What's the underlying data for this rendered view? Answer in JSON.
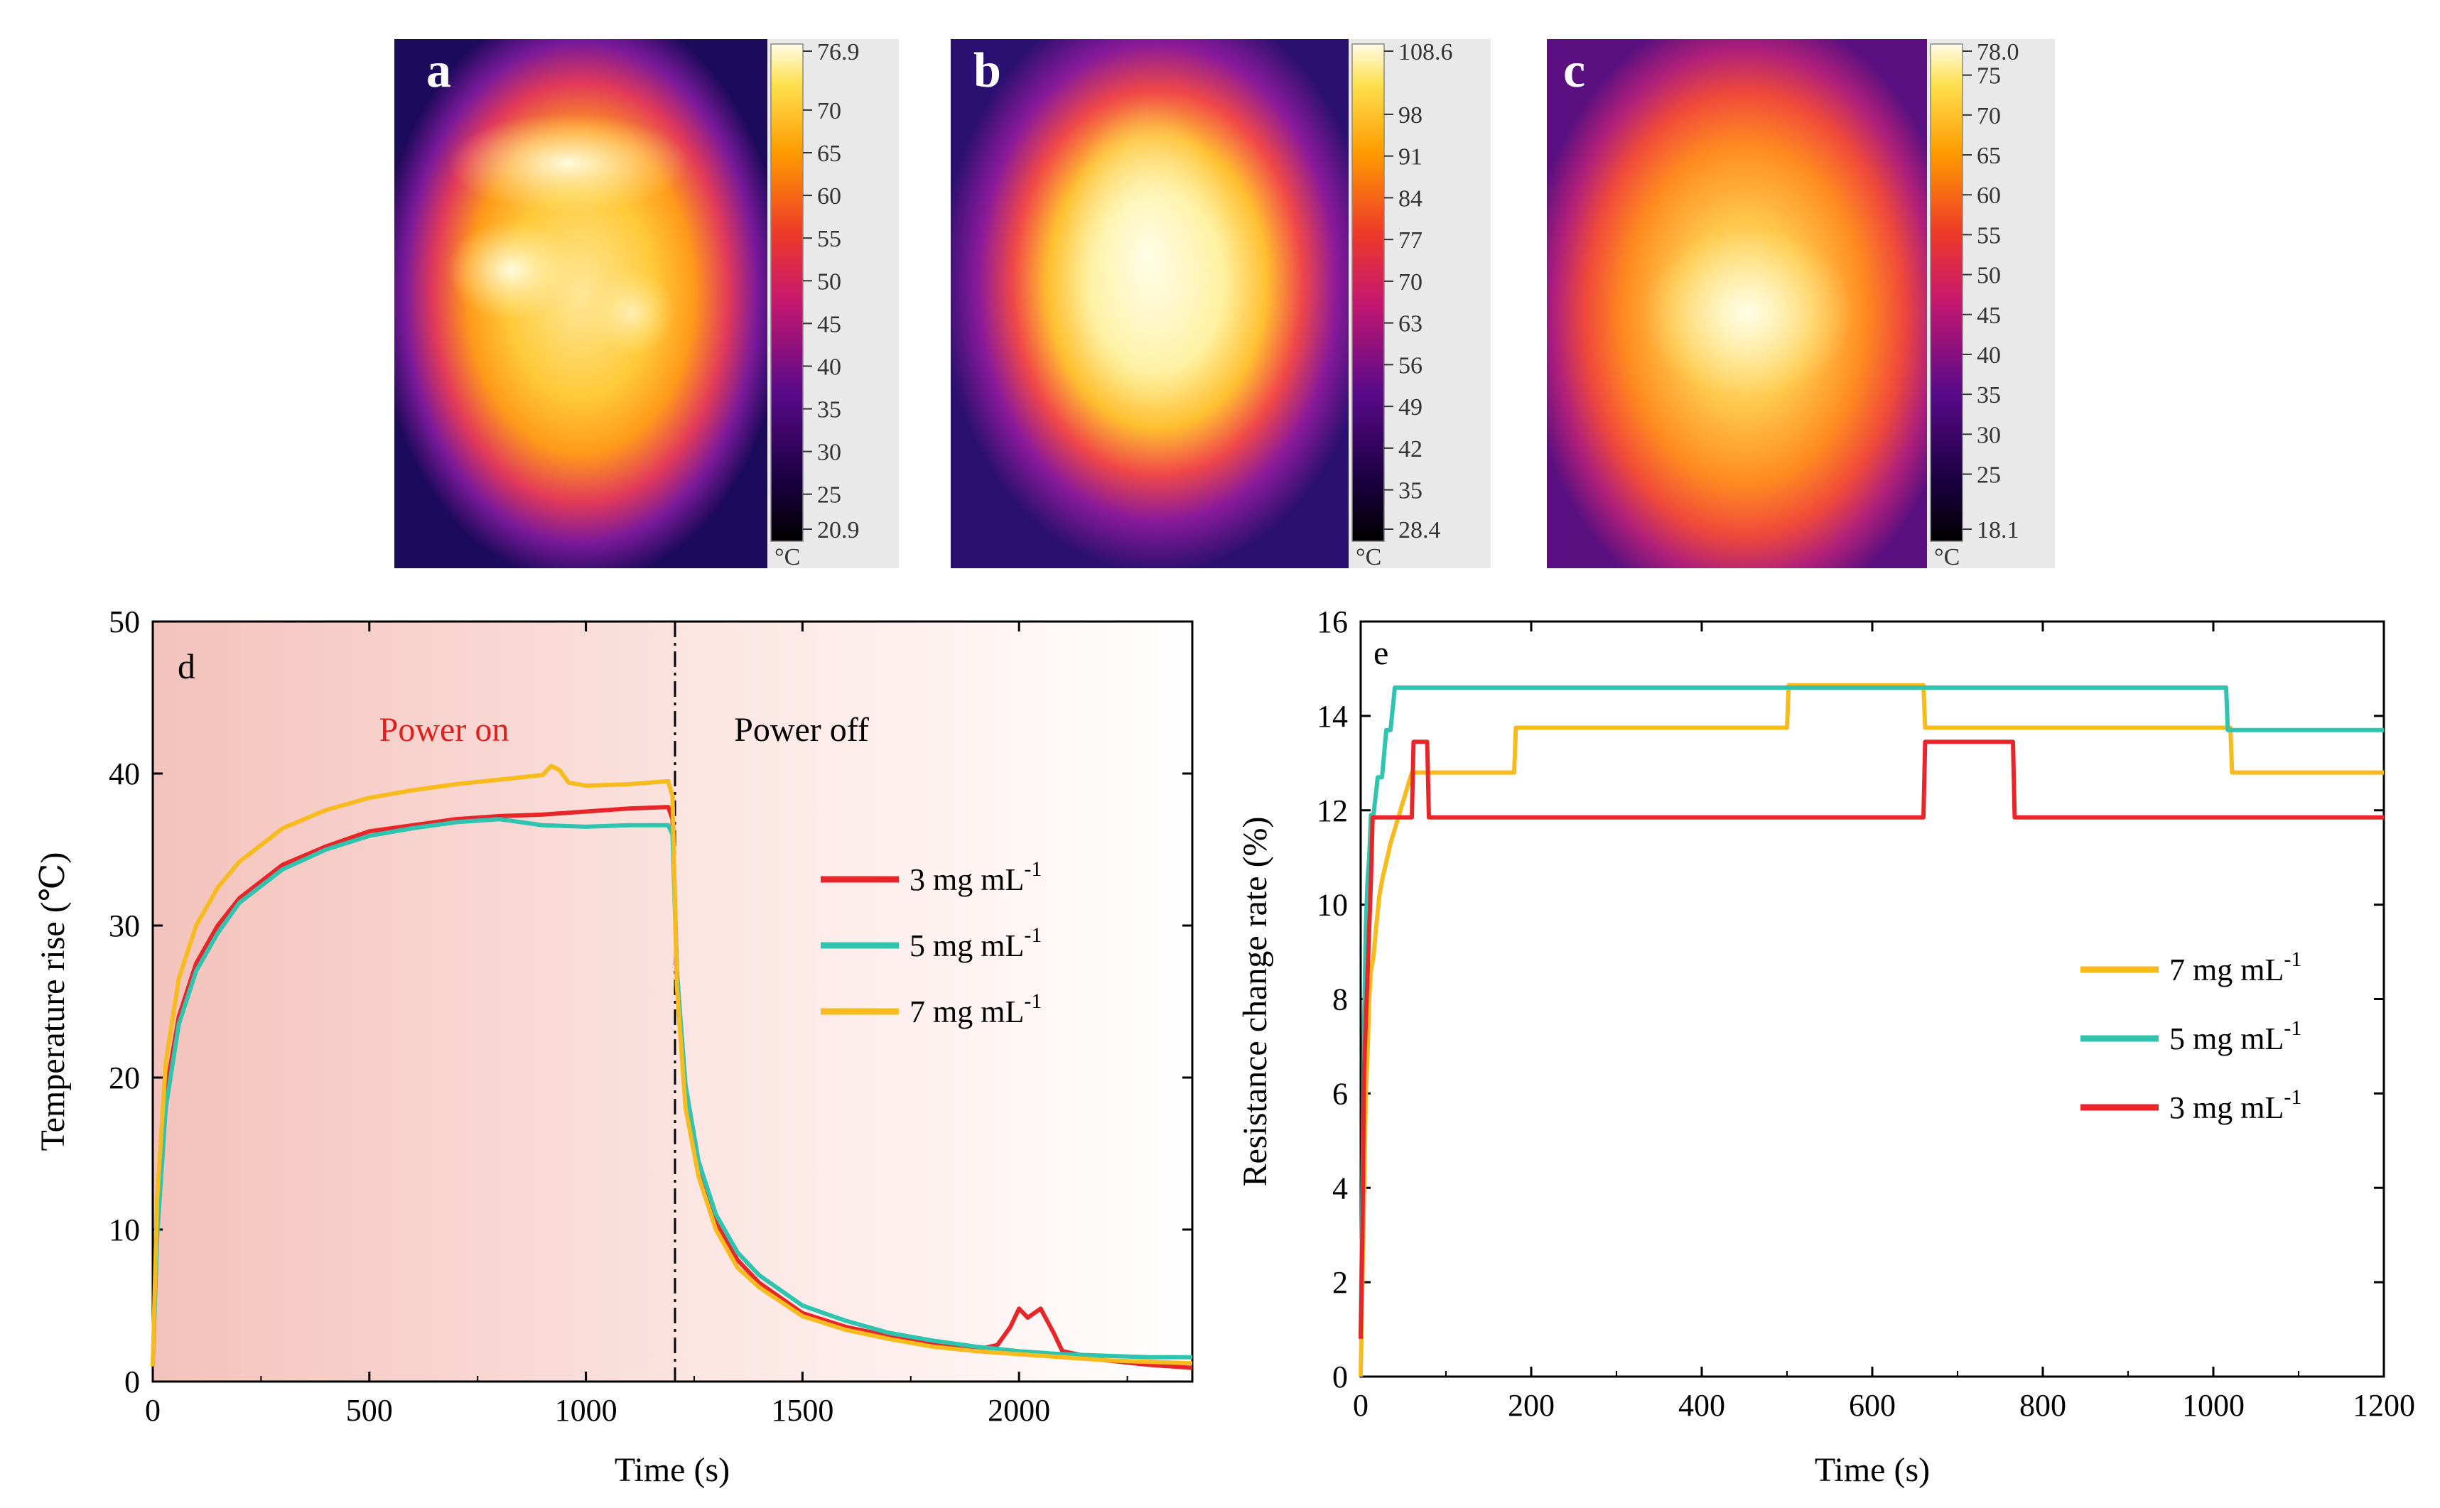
{
  "colors": {
    "c3": "#e8262a",
    "c5": "#2ec4b0",
    "c7": "#f7bb1e",
    "power_on_bg": "#f6cbc6",
    "power_on_text": "#e02020"
  },
  "thermal_images": [
    {
      "label": "a",
      "scale_max": "76.9",
      "scale_min": "20.9",
      "ticks": [
        "70",
        "65",
        "60",
        "55",
        "50",
        "45",
        "40",
        "35",
        "30",
        "25"
      ],
      "unit": "°C"
    },
    {
      "label": "b",
      "scale_max": "108.6",
      "scale_min": "28.4",
      "ticks": [
        "98",
        "91",
        "84",
        "77",
        "70",
        "63",
        "56",
        "49",
        "42",
        "35"
      ],
      "unit": "°C"
    },
    {
      "label": "c",
      "scale_max": "78.0",
      "scale_min": "18.1",
      "ticks": [
        "75",
        "70",
        "65",
        "60",
        "55",
        "50",
        "45",
        "40",
        "35",
        "30",
        "25"
      ],
      "unit": "°C"
    }
  ],
  "chart_data": [
    {
      "type": "line",
      "panel_label": "d",
      "xlabel": "Time (s)",
      "ylabel": "Temperature rise (℃)",
      "xlim": [
        0,
        2400
      ],
      "ylim": [
        0,
        50
      ],
      "xticks": [
        "0",
        "500",
        "1000",
        "1500",
        "2000"
      ],
      "yticks": [
        "0",
        "10",
        "20",
        "30",
        "40",
        "50"
      ],
      "annotations": {
        "power_on": "Power on",
        "power_off": "Power off",
        "switch_time": 1200
      },
      "series": [
        {
          "name": "3 mg mL",
          "superscript": "-1",
          "color_key": "c3",
          "x": [
            0,
            10,
            30,
            60,
            100,
            150,
            200,
            300,
            400,
            500,
            600,
            700,
            800,
            900,
            1000,
            1100,
            1190,
            1200,
            1210,
            1230,
            1260,
            1300,
            1350,
            1400,
            1500,
            1600,
            1700,
            1800,
            1900,
            1950,
            1980,
            2000,
            2020,
            2050,
            2080,
            2100,
            2200,
            2300,
            2400
          ],
          "values": [
            1,
            10,
            19,
            24,
            27.5,
            30,
            31.8,
            34,
            35.2,
            36.2,
            36.6,
            37,
            37.2,
            37.3,
            37.5,
            37.7,
            37.8,
            37,
            27,
            19,
            14,
            10.5,
            8,
            6.5,
            4.5,
            3.6,
            3,
            2.5,
            2.1,
            2.4,
            3.6,
            4.8,
            4.2,
            4.8,
            3.2,
            2,
            1.4,
            1.1,
            0.9
          ]
        },
        {
          "name": "5 mg mL",
          "superscript": "-1",
          "color_key": "c5",
          "x": [
            0,
            10,
            30,
            60,
            100,
            150,
            200,
            300,
            400,
            500,
            600,
            700,
            800,
            900,
            1000,
            1100,
            1190,
            1200,
            1210,
            1230,
            1260,
            1300,
            1350,
            1400,
            1500,
            1600,
            1700,
            1800,
            1900,
            2000,
            2100,
            2200,
            2300,
            2400
          ],
          "values": [
            1,
            9.5,
            18,
            23.5,
            27,
            29.5,
            31.5,
            33.7,
            35,
            35.9,
            36.4,
            36.8,
            37,
            36.6,
            36.5,
            36.6,
            36.6,
            36,
            27,
            19.5,
            14.5,
            11,
            8.5,
            7,
            5,
            4,
            3.2,
            2.7,
            2.3,
            2,
            1.8,
            1.7,
            1.6,
            1.6
          ]
        },
        {
          "name": "7 mg mL",
          "superscript": "-1",
          "color_key": "c7",
          "x": [
            0,
            10,
            30,
            60,
            100,
            150,
            200,
            300,
            400,
            500,
            600,
            700,
            800,
            900,
            920,
            940,
            960,
            1000,
            1100,
            1190,
            1200,
            1210,
            1230,
            1260,
            1300,
            1350,
            1400,
            1500,
            1600,
            1700,
            1800,
            1900,
            2000,
            2100,
            2200,
            2300,
            2400
          ],
          "values": [
            1,
            12,
            21,
            26.5,
            30,
            32.5,
            34.2,
            36.4,
            37.6,
            38.4,
            38.9,
            39.3,
            39.6,
            39.9,
            40.5,
            40.2,
            39.4,
            39.2,
            39.3,
            39.5,
            38.5,
            26,
            18,
            13.5,
            10,
            7.5,
            6.2,
            4.3,
            3.4,
            2.8,
            2.3,
            2,
            1.8,
            1.6,
            1.4,
            1.3,
            1.2
          ]
        }
      ]
    },
    {
      "type": "line",
      "panel_label": "e",
      "xlabel": "Time (s)",
      "ylabel": "Resistance change rate (%)",
      "xlim": [
        0,
        1200
      ],
      "ylim": [
        0,
        16
      ],
      "xticks": [
        "0",
        "200",
        "400",
        "600",
        "800",
        "1000",
        "1200"
      ],
      "yticks": [
        "0",
        "2",
        "4",
        "6",
        "8",
        "10",
        "12",
        "14",
        "16"
      ],
      "series": [
        {
          "name": "7 mg mL",
          "superscript": "-1",
          "color_key": "c7",
          "x": [
            0,
            2,
            4,
            6,
            8,
            10,
            12,
            15,
            18,
            22,
            26,
            30,
            35,
            40,
            45,
            50,
            55,
            60,
            65,
            180,
            182,
            500,
            502,
            660,
            662,
            1020,
            1022,
            1200
          ],
          "values": [
            0,
            2,
            4,
            6,
            6.8,
            8,
            8.6,
            8.9,
            9.5,
            10.2,
            10.6,
            10.9,
            11.3,
            11.6,
            11.9,
            12.2,
            12.5,
            12.8,
            12.8,
            12.8,
            13.75,
            13.75,
            14.65,
            14.65,
            13.75,
            13.75,
            12.8,
            12.8
          ]
        },
        {
          "name": "5 mg mL",
          "superscript": "-1",
          "color_key": "c5",
          "x": [
            0,
            2,
            4,
            6,
            8,
            10,
            12,
            15,
            20,
            25,
            30,
            35,
            40,
            45,
            1015,
            1017,
            1200
          ],
          "values": [
            0.8,
            4,
            7.5,
            9.5,
            10.5,
            11,
            11.9,
            11.9,
            12.7,
            12.7,
            13.7,
            13.7,
            14.6,
            14.6,
            14.6,
            13.7,
            13.7
          ]
        },
        {
          "name": "3 mg mL",
          "superscript": "-1",
          "color_key": "c3",
          "x": [
            0,
            2,
            4,
            6,
            8,
            10,
            12,
            14,
            60,
            62,
            78,
            80,
            660,
            662,
            765,
            767,
            1200
          ],
          "values": [
            0.8,
            3,
            6.5,
            7.5,
            8.5,
            9.5,
            10.5,
            11.85,
            11.85,
            13.45,
            13.45,
            11.85,
            11.85,
            13.45,
            13.45,
            11.85,
            11.85
          ]
        }
      ]
    }
  ]
}
